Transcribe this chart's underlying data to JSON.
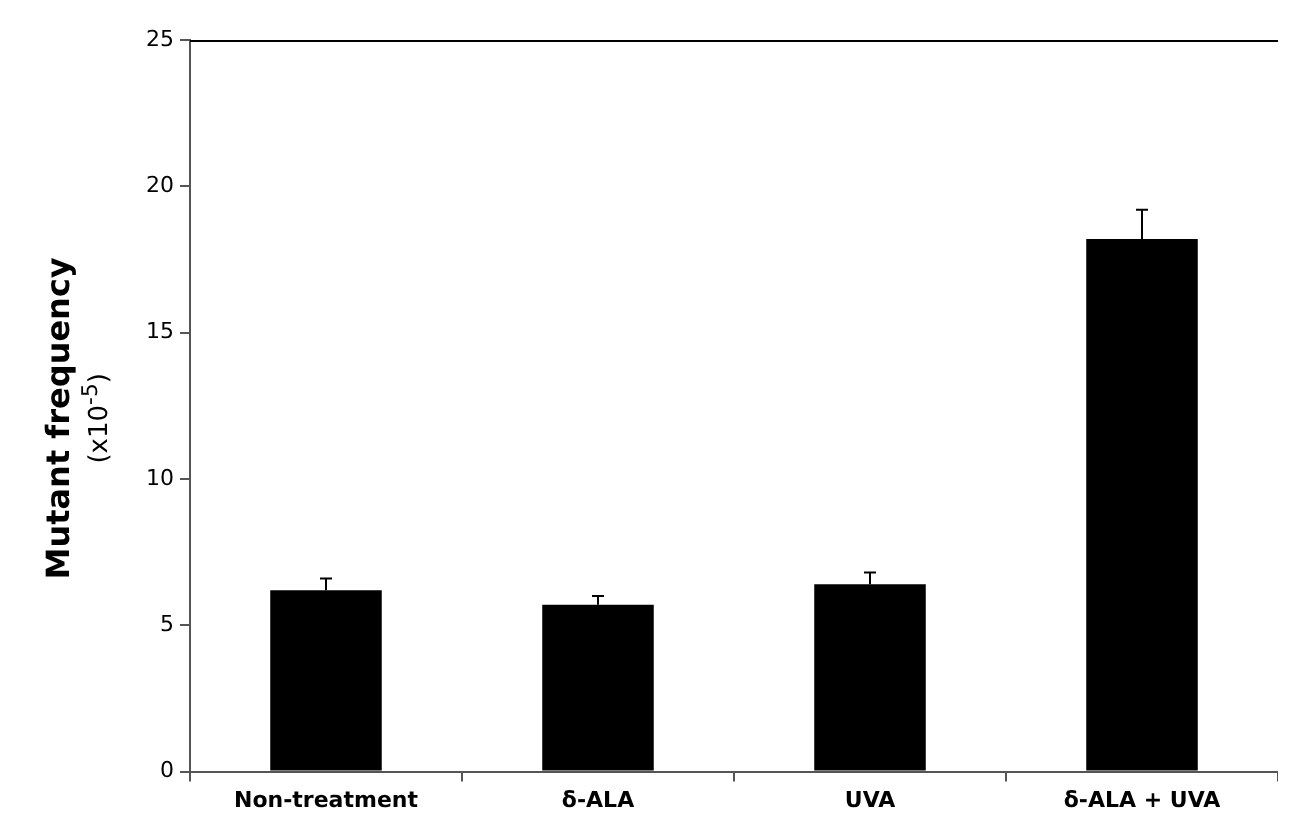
{
  "chart_data": {
    "type": "bar",
    "ylabel": "Mutant frequency\n(x10$^{-5}$)",
    "categories": [
      "Non-treatment",
      "δ-ALA",
      "UVA",
      "δ-ALA + UVA"
    ],
    "values": [
      6.2,
      5.7,
      6.4,
      18.2
    ],
    "errors": [
      [
        6.2,
        6.6
      ],
      [
        5.7,
        6.0
      ],
      [
        6.4,
        6.8
      ],
      [
        18.2,
        19.2
      ]
    ],
    "color": "#000000",
    "ylim": [
      0,
      25
    ],
    "yticks": [
      0,
      5,
      10,
      15,
      20,
      25
    ],
    "grid": false,
    "legend": false
  }
}
